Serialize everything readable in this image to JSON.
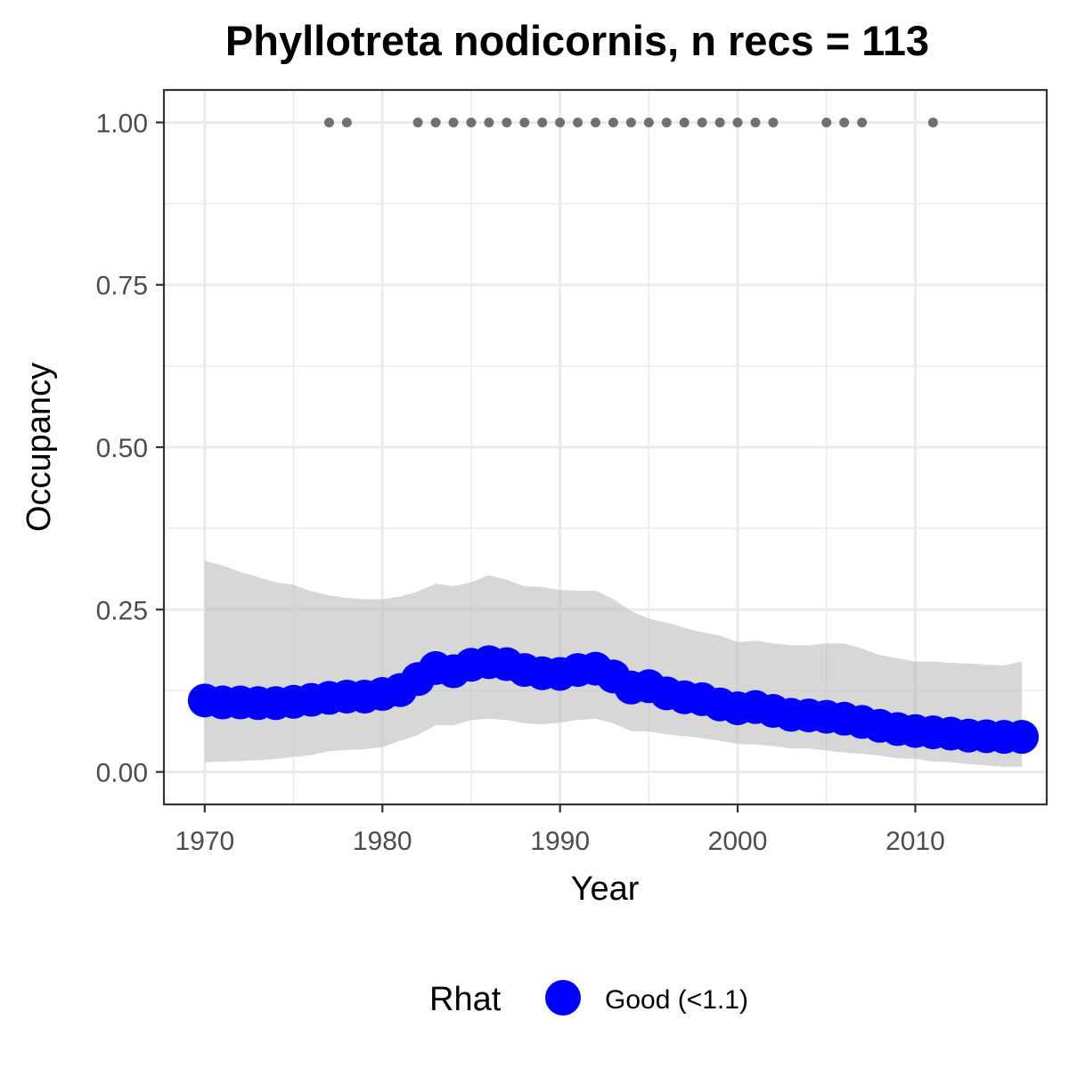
{
  "chart_data": {
    "type": "line",
    "title": "Phyllotreta nodicornis, n recs = 113",
    "xlabel": "Year",
    "ylabel": "Occupancy",
    "xlim": [
      1967.7,
      2017.4
    ],
    "ylim": [
      -0.05,
      1.05
    ],
    "x_ticks": [
      1970,
      1980,
      1990,
      2000,
      2010
    ],
    "x_tick_labels": [
      "1970",
      "1980",
      "1990",
      "2000",
      "2010"
    ],
    "y_ticks": [
      0,
      0.25,
      0.5,
      0.75,
      1.0
    ],
    "y_tick_labels": [
      "0.00",
      "0.25",
      "0.50",
      "0.75",
      "1.00"
    ],
    "grid": true,
    "legend": {
      "title": "Rhat",
      "position": "bottom",
      "entries": [
        {
          "label": "Good (<1.1)",
          "color": "#0000ff"
        }
      ]
    },
    "series": [
      {
        "name": "Good (<1.1)",
        "color": "#0000ff",
        "x": [
          1970,
          1971,
          1972,
          1973,
          1974,
          1975,
          1976,
          1977,
          1978,
          1979,
          1980,
          1981,
          1982,
          1983,
          1984,
          1985,
          1986,
          1987,
          1988,
          1989,
          1990,
          1991,
          1992,
          1993,
          1994,
          1995,
          1996,
          1997,
          1998,
          1999,
          2000,
          2001,
          2002,
          2003,
          2004,
          2005,
          2006,
          2007,
          2008,
          2009,
          2010,
          2011,
          2012,
          2013,
          2014,
          2015,
          2016
        ],
        "y": [
          0.11,
          0.107,
          0.107,
          0.106,
          0.106,
          0.108,
          0.111,
          0.114,
          0.116,
          0.116,
          0.12,
          0.126,
          0.143,
          0.16,
          0.155,
          0.165,
          0.169,
          0.166,
          0.157,
          0.152,
          0.151,
          0.157,
          0.159,
          0.147,
          0.13,
          0.132,
          0.121,
          0.115,
          0.112,
          0.104,
          0.098,
          0.1,
          0.094,
          0.088,
          0.087,
          0.085,
          0.082,
          0.077,
          0.071,
          0.066,
          0.063,
          0.061,
          0.059,
          0.056,
          0.055,
          0.054,
          0.054
        ],
        "lower": [
          0.015,
          0.016,
          0.017,
          0.018,
          0.02,
          0.023,
          0.026,
          0.032,
          0.034,
          0.035,
          0.038,
          0.048,
          0.057,
          0.072,
          0.072,
          0.08,
          0.082,
          0.08,
          0.075,
          0.073,
          0.076,
          0.08,
          0.082,
          0.075,
          0.063,
          0.062,
          0.058,
          0.055,
          0.052,
          0.048,
          0.043,
          0.042,
          0.04,
          0.036,
          0.036,
          0.033,
          0.03,
          0.028,
          0.025,
          0.021,
          0.02,
          0.016,
          0.015,
          0.012,
          0.01,
          0.008,
          0.008
        ],
        "upper": [
          0.325,
          0.318,
          0.308,
          0.3,
          0.292,
          0.288,
          0.278,
          0.272,
          0.268,
          0.266,
          0.266,
          0.27,
          0.278,
          0.29,
          0.286,
          0.292,
          0.303,
          0.296,
          0.286,
          0.285,
          0.28,
          0.279,
          0.279,
          0.266,
          0.248,
          0.236,
          0.23,
          0.222,
          0.215,
          0.21,
          0.2,
          0.202,
          0.198,
          0.195,
          0.195,
          0.198,
          0.198,
          0.19,
          0.18,
          0.175,
          0.17,
          0.17,
          0.168,
          0.167,
          0.165,
          0.164,
          0.17
        ]
      }
    ],
    "records": {
      "y": 1.0,
      "color": "#707070",
      "x": [
        1977,
        1978,
        1982,
        1983,
        1984,
        1985,
        1986,
        1987,
        1988,
        1989,
        1990,
        1991,
        1992,
        1993,
        1994,
        1995,
        1996,
        1997,
        1998,
        1999,
        2000,
        2001,
        2002,
        2005,
        2006,
        2007,
        2011
      ]
    }
  }
}
